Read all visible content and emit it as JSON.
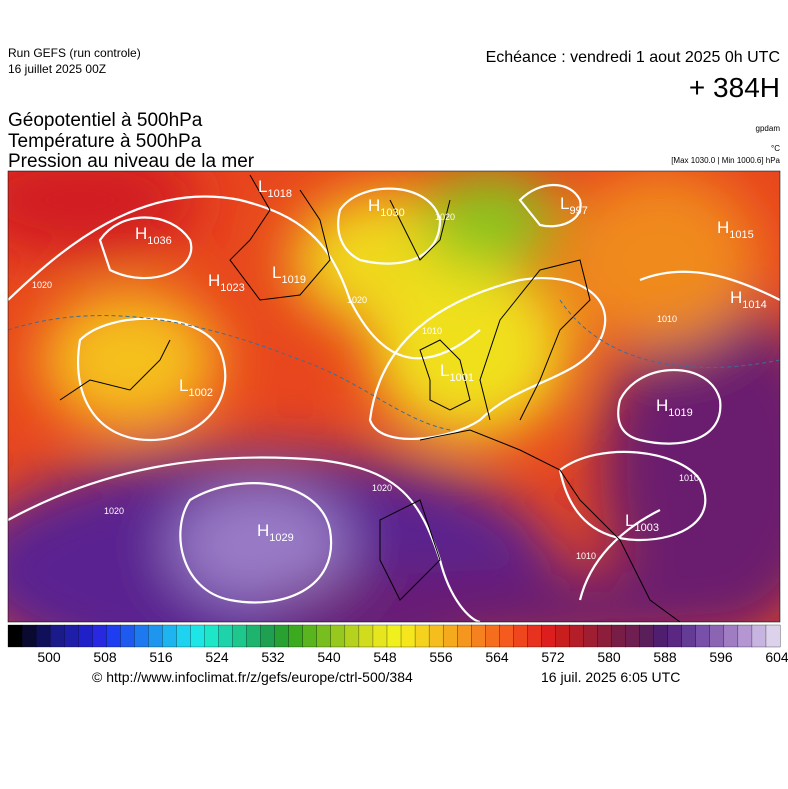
{
  "header": {
    "run": "Run GEFS (run controle)",
    "run_date": "16 juillet 2025 00Z",
    "valid": "Echéance : vendredi 1 aout 2025 0h UTC",
    "lead": "+ 384H"
  },
  "titles": [
    "Géopotentiel à 500hPa",
    "Température à 500hPa",
    "Pression au niveau de la mer"
  ],
  "units": {
    "geopotential": "gpdam",
    "temperature": "°C",
    "pressure": "[Max 1030.0 | Min 1000.6] hPa"
  },
  "pressure_centers": [
    {
      "letter": "H",
      "value": "1036"
    },
    {
      "letter": "L",
      "value": "1018"
    },
    {
      "letter": "H",
      "value": "1030"
    },
    {
      "letter": "L",
      "value": "997"
    },
    {
      "letter": "H",
      "value": "1015"
    },
    {
      "letter": "H",
      "value": "1023"
    },
    {
      "letter": "L",
      "value": "1019"
    },
    {
      "letter": "H",
      "value": "1014"
    },
    {
      "letter": "L",
      "value": "1002"
    },
    {
      "letter": "L",
      "value": "1001"
    },
    {
      "letter": "H",
      "value": "1019"
    },
    {
      "letter": "L",
      "value": "1003"
    },
    {
      "letter": "H",
      "value": "1029"
    }
  ],
  "contour_labels": [
    "1020",
    "1020",
    "1020",
    "1010",
    "1010",
    "1010",
    "1020",
    "1020",
    "1010"
  ],
  "colorbar": {
    "ticks": [
      500,
      508,
      516,
      524,
      532,
      540,
      548,
      556,
      564,
      572,
      580,
      588,
      596,
      604
    ],
    "colors": [
      "#000000",
      "#0a0a30",
      "#10105a",
      "#1a1a8a",
      "#1e1ea8",
      "#2020c8",
      "#2828e0",
      "#1e3cf0",
      "#1e5af0",
      "#1e78f0",
      "#1e96f0",
      "#1eb4f0",
      "#1ed2f0",
      "#1ee6e6",
      "#1ee6c8",
      "#1ed2aa",
      "#1ec88c",
      "#1eb46e",
      "#1ea050",
      "#28a032",
      "#3caa1e",
      "#5ab41e",
      "#78be1e",
      "#96c81e",
      "#b4d21e",
      "#d2dc1e",
      "#e6e61e",
      "#f0f01e",
      "#f5e61e",
      "#f5d21e",
      "#f5be1e",
      "#f5aa1e",
      "#f5961e",
      "#f5821e",
      "#f56e1e",
      "#f55a1e",
      "#f0461e",
      "#e6321e",
      "#dc1e1e",
      "#c81e1e",
      "#b41e28",
      "#a01e32",
      "#8c1e3c",
      "#781e46",
      "#6e1e50",
      "#5a1e5a",
      "#501e6e",
      "#5a2882",
      "#643c96",
      "#7850aa",
      "#8c64b4",
      "#a07cc3",
      "#b496d2",
      "#c8b4e1",
      "#dcd2eb"
    ]
  },
  "footer": {
    "source": "© http://www.infoclimat.fr/z/gefs/europe/ctrl-500/384",
    "generated": "16 juil. 2025  6:05 UTC"
  }
}
